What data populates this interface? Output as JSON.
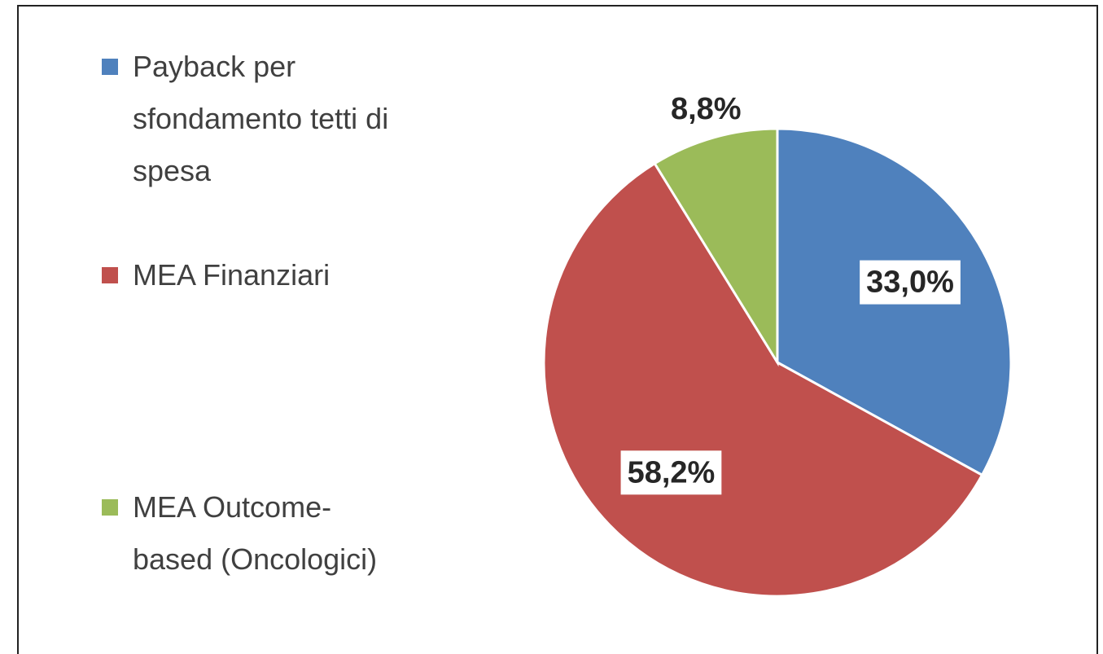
{
  "chart_data": {
    "type": "pie",
    "categories": [
      "Payback per sfondamento tetti di spesa",
      "MEA Finanziari",
      "MEA Outcome-based (Oncologici)"
    ],
    "values": [
      33.0,
      58.2,
      8.8
    ],
    "value_labels": [
      "33,0%",
      "58,2%",
      "8,8%"
    ],
    "colors": [
      "#4f81bd",
      "#c0504d",
      "#9bbb59"
    ],
    "legend": "left"
  }
}
